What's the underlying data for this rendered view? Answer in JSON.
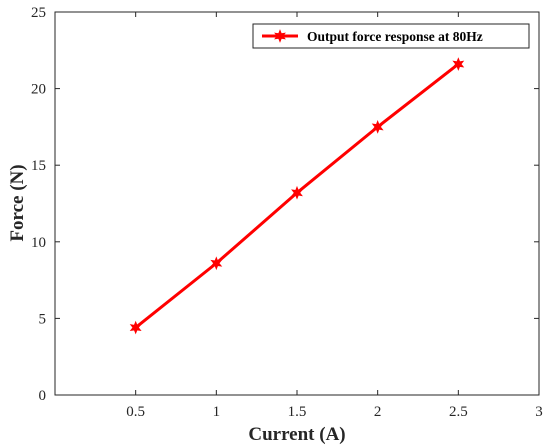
{
  "chart_data": {
    "type": "line",
    "title": "",
    "xlabel": "Current (A)",
    "ylabel": "Force (N)",
    "xlim": [
      0,
      3
    ],
    "ylim": [
      0,
      25
    ],
    "x_ticks": [
      0.5,
      1,
      1.5,
      2,
      2.5,
      3
    ],
    "x_tick_labels": [
      "0.5",
      "1",
      "1.5",
      "2",
      "2.5",
      "3"
    ],
    "y_ticks": [
      0,
      5,
      10,
      15,
      20,
      25
    ],
    "y_tick_labels": [
      "0",
      "5",
      "10",
      "15",
      "20",
      "25"
    ],
    "grid": false,
    "legend_position": "top-right",
    "series": [
      {
        "name": "Output force response at 80Hz",
        "color": "#ff0000",
        "marker": "star",
        "x": [
          0.5,
          1,
          1.5,
          2,
          2.5
        ],
        "y": [
          4.4,
          8.6,
          13.2,
          17.5,
          21.6
        ]
      }
    ]
  }
}
